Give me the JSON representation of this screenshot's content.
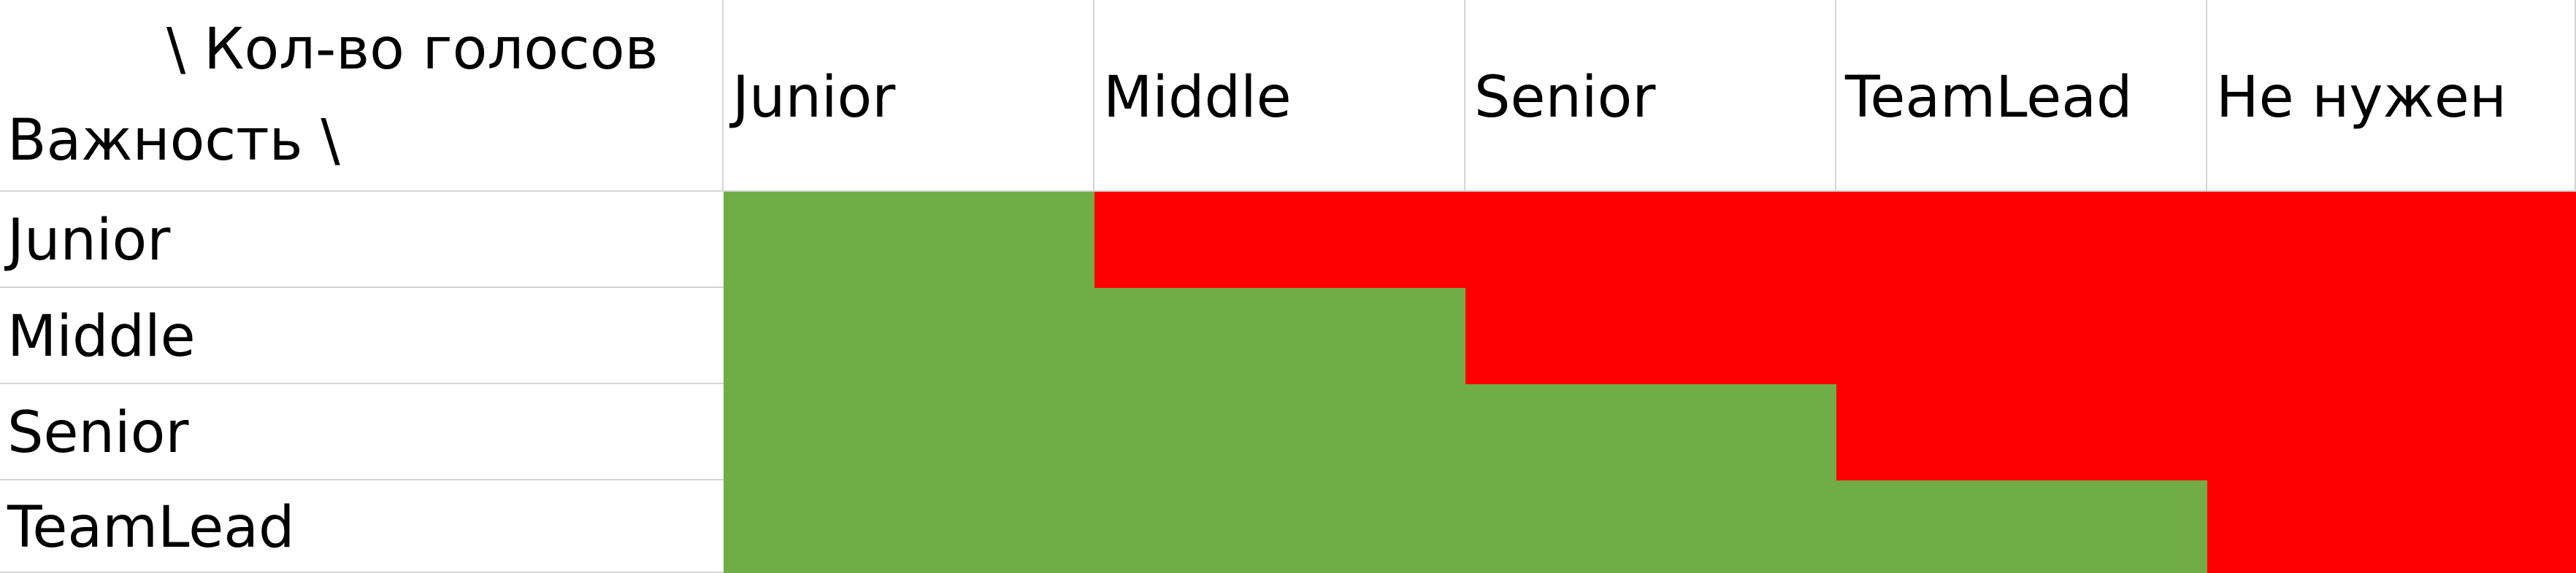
{
  "corner": {
    "top_label": "\\ Кол-во голосов",
    "bottom_label": "Важность \\"
  },
  "columns": [
    "Junior",
    "Middle",
    "Senior",
    "TeamLead",
    "Не нужен"
  ],
  "rows": [
    "Junior",
    "Middle",
    "Senior",
    "TeamLead"
  ],
  "matrix": [
    [
      "green",
      "red",
      "red",
      "red",
      "red"
    ],
    [
      "green",
      "green",
      "red",
      "red",
      "red"
    ],
    [
      "green",
      "green",
      "green",
      "red",
      "red"
    ],
    [
      "green",
      "green",
      "green",
      "green",
      "red"
    ]
  ],
  "colors": {
    "green": "#70ad47",
    "red": "#ff0000"
  }
}
